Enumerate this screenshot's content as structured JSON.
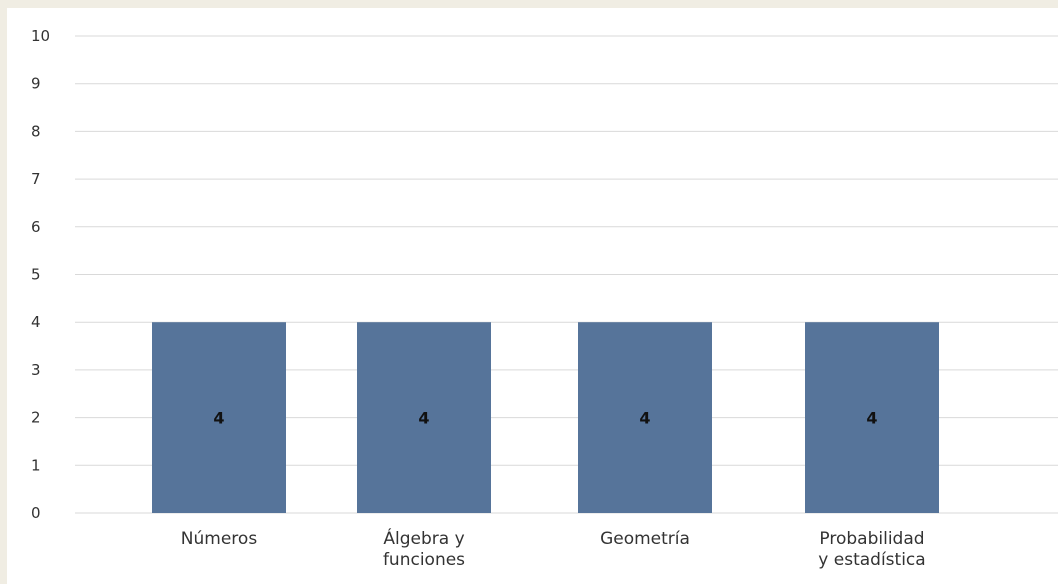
{
  "chart_data": {
    "type": "bar",
    "categories": [
      "Números",
      "Álgebra y funciones",
      "Geometría",
      "Probabilidad y estadística"
    ],
    "category_label_lines": [
      [
        "Números"
      ],
      [
        "Álgebra y",
        "funciones"
      ],
      [
        "Geometría"
      ],
      [
        "Probabilidad",
        "y estadística"
      ]
    ],
    "values": [
      4,
      4,
      4,
      4
    ],
    "data_labels": [
      "4",
      "4",
      "4",
      "4"
    ],
    "ylim": [
      0,
      10
    ],
    "yticks": [
      0,
      1,
      2,
      3,
      4,
      5,
      6,
      7,
      8,
      9,
      10
    ],
    "title": "",
    "xlabel": "",
    "ylabel": "",
    "grid": true,
    "legend": false,
    "bar_color": "#56749a"
  }
}
